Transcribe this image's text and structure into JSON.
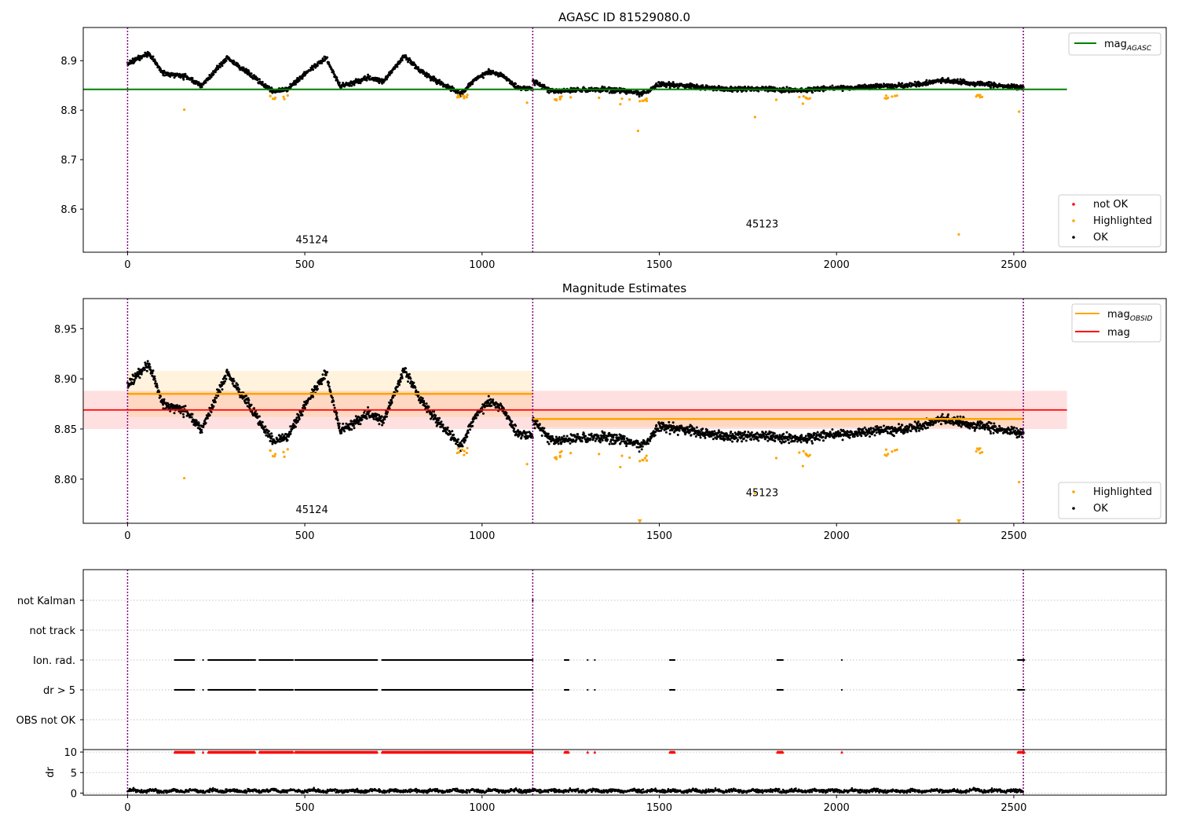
{
  "colors": {
    "ok": "#000000",
    "highlighted": "#FFA500",
    "not_ok": "#FF0000",
    "mag_agasc": "#008000",
    "mag_obsid": "#FFA500",
    "mag": "#FF0000",
    "obsid_divider": "#800080",
    "grid": "#B0B0B0"
  },
  "panel1": {
    "title": "AGASC ID 81529080.0",
    "legend_lines": [
      {
        "base": "mag",
        "sub": "AGASC"
      }
    ],
    "legend_points": [
      "not OK",
      "Highlighted",
      "OK"
    ],
    "obsid_labels": [
      {
        "text": "45124",
        "x": 520,
        "y": 8.531
      },
      {
        "text": "45123",
        "x": 1790,
        "y": 8.563
      }
    ]
  },
  "panel2": {
    "title": "Magnitude Estimates",
    "legend_lines": [
      {
        "base": "mag",
        "sub": "OBSID"
      },
      {
        "base": "mag",
        "sub": ""
      }
    ],
    "legend_points": [
      "Highlighted",
      "OK"
    ],
    "obsid_labels": [
      {
        "text": "45124",
        "x": 520,
        "y": 8.766
      },
      {
        "text": "45123",
        "x": 1790,
        "y": 8.783
      }
    ]
  },
  "panel3": {
    "flag_labels": [
      "not Kalman",
      "not track",
      "Ion. rad.",
      "dr > 5",
      "OBS not OK"
    ]
  },
  "panel4": {
    "ylabel": "dr"
  },
  "chart_data": [
    {
      "type": "scatter",
      "title": "AGASC ID 81529080.0",
      "xlim": [
        -125,
        2930
      ],
      "ylim": [
        8.513,
        8.967
      ],
      "xticks": [
        0,
        500,
        1000,
        1500,
        2000,
        2500
      ],
      "yticks": [
        8.6,
        8.7,
        8.8,
        8.9
      ],
      "mag_agasc": 8.842,
      "obsid_boundaries": [
        0,
        1143,
        2527
      ],
      "obsids": [
        "45124",
        "45123"
      ],
      "series": [
        {
          "name": "OK",
          "segments": [
            {
              "x": [
                0,
                60,
                100,
                160,
                210,
                280,
                350,
                410,
                450,
                520,
                560,
                600,
                680,
                720,
                780,
                840,
                900,
                940,
                980,
                1020,
                1060,
                1100,
                1143
              ],
              "y": [
                8.893,
                8.915,
                8.875,
                8.868,
                8.85,
                8.905,
                8.87,
                8.838,
                8.842,
                8.885,
                8.905,
                8.848,
                8.865,
                8.858,
                8.908,
                8.872,
                8.848,
                8.833,
                8.862,
                8.878,
                8.87,
                8.845,
                8.843
              ]
            },
            {
              "x": [
                1143,
                1200,
                1300,
                1400,
                1450,
                1500,
                1600,
                1700,
                1800,
                1900,
                2000,
                2100,
                2200,
                2300,
                2400,
                2500,
                2527
              ],
              "y": [
                8.858,
                8.838,
                8.842,
                8.84,
                8.832,
                8.852,
                8.848,
                8.842,
                8.843,
                8.84,
                8.845,
                8.848,
                8.85,
                8.86,
                8.853,
                8.848,
                8.845
              ]
            }
          ]
        },
        {
          "name": "Highlighted",
          "x": [
            160,
            410,
            440,
            930,
            950,
            1127,
            1210,
            1250,
            1330,
            1390,
            1440,
            1445,
            1460,
            1770,
            1830,
            1905,
            1925,
            2145,
            2345,
            2405,
            2515
          ],
          "y": [
            8.801,
            8.823,
            8.827,
            8.826,
            8.828,
            8.815,
            8.82,
            8.826,
            8.825,
            8.812,
            8.758,
            8.818,
            8.821,
            8.786,
            8.821,
            8.813,
            8.824,
            8.825,
            8.549,
            8.826,
            8.797
          ]
        },
        {
          "name": "not OK",
          "x": [],
          "y": []
        }
      ]
    },
    {
      "type": "scatter",
      "title": "Magnitude Estimates",
      "xlim": [
        -125,
        2930
      ],
      "ylim": [
        8.756,
        8.98
      ],
      "xticks": [
        0,
        500,
        1000,
        1500,
        2000,
        2500
      ],
      "yticks": [
        8.8,
        8.85,
        8.9,
        8.95
      ],
      "ytick_labels": [
        "8.80",
        "8.85",
        "8.90",
        "8.95"
      ],
      "mag": 8.869,
      "mag_band": [
        8.85,
        8.888
      ],
      "mag_obsid": [
        {
          "x": [
            0,
            1143
          ],
          "value": 8.885,
          "band": [
            8.862,
            8.908
          ]
        },
        {
          "x": [
            1143,
            2527
          ],
          "value": 8.86,
          "band": [
            8.852,
            8.868
          ]
        }
      ],
      "obsid_boundaries": [
        0,
        1143,
        2527
      ],
      "series": [
        {
          "name": "OK",
          "segments": [
            {
              "x": [
                0,
                60,
                100,
                160,
                210,
                280,
                350,
                410,
                450,
                520,
                560,
                600,
                680,
                720,
                780,
                840,
                900,
                940,
                980,
                1020,
                1060,
                1100,
                1143
              ],
              "y": [
                8.893,
                8.915,
                8.875,
                8.868,
                8.85,
                8.905,
                8.87,
                8.838,
                8.842,
                8.885,
                8.905,
                8.848,
                8.865,
                8.858,
                8.908,
                8.872,
                8.848,
                8.833,
                8.862,
                8.878,
                8.87,
                8.845,
                8.843
              ]
            },
            {
              "x": [
                1143,
                1200,
                1300,
                1400,
                1450,
                1500,
                1600,
                1700,
                1800,
                1900,
                2000,
                2100,
                2200,
                2300,
                2400,
                2500,
                2527
              ],
              "y": [
                8.858,
                8.838,
                8.842,
                8.84,
                8.832,
                8.852,
                8.848,
                8.842,
                8.843,
                8.84,
                8.845,
                8.848,
                8.85,
                8.86,
                8.853,
                8.848,
                8.845
              ]
            }
          ]
        },
        {
          "name": "Highlighted",
          "x": [
            160,
            410,
            440,
            930,
            950,
            1127,
            1210,
            1250,
            1330,
            1390,
            1445,
            1460,
            1770,
            1830,
            1905,
            1925,
            2145,
            2405,
            2515
          ],
          "y": [
            8.801,
            8.823,
            8.827,
            8.826,
            8.828,
            8.815,
            8.82,
            8.826,
            8.825,
            8.812,
            8.818,
            8.821,
            8.786,
            8.821,
            8.813,
            8.824,
            8.825,
            8.826,
            8.797
          ]
        },
        {
          "name": "Highlighted (clipped below axis)",
          "x": [
            1445,
            2345
          ],
          "y": [
            8.756,
            8.756
          ]
        }
      ]
    },
    {
      "type": "scatter",
      "xlim": [
        -125,
        2930
      ],
      "categories": [
        "not Kalman",
        "not track",
        "Ion. rad.",
        "dr > 5",
        "OBS not OK"
      ],
      "obsid_boundaries": [
        0,
        1143,
        2527
      ],
      "flag_ranges": {
        "Ion. rad.": [
          [
            133,
            190
          ],
          [
            213,
            215
          ],
          [
            228,
            360
          ],
          [
            372,
            467
          ],
          [
            473,
            705
          ],
          [
            718,
            1143
          ],
          [
            1233,
            1245
          ],
          [
            1298,
            1300
          ],
          [
            1318,
            1320
          ],
          [
            1530,
            1545
          ],
          [
            1833,
            1850
          ],
          [
            2015,
            2017
          ],
          [
            2512,
            2530
          ]
        ],
        "dr > 5": [
          [
            133,
            190
          ],
          [
            213,
            215
          ],
          [
            228,
            360
          ],
          [
            372,
            467
          ],
          [
            473,
            705
          ],
          [
            718,
            1143
          ],
          [
            1233,
            1245
          ],
          [
            1298,
            1300
          ],
          [
            1318,
            1320
          ],
          [
            1530,
            1545
          ],
          [
            1833,
            1850
          ],
          [
            2015,
            2017
          ],
          [
            2512,
            2530
          ]
        ],
        "not Kalman": [
          [
            1143,
            1145
          ]
        ]
      }
    },
    {
      "type": "scatter",
      "ylabel": "dr",
      "xlim": [
        -125,
        2930
      ],
      "ylim": [
        -0.5,
        10.6
      ],
      "xticks": [
        0,
        500,
        1000,
        1500,
        2000,
        2500
      ],
      "yticks": [
        0,
        5,
        10
      ],
      "series": [
        {
          "name": "dr",
          "x": [
            0,
            2527
          ],
          "y": [
            0.6,
            0.6
          ]
        },
        {
          "name": "dr > 10 (clipped)",
          "same_ranges_as": "dr > 5",
          "y": 10
        }
      ]
    }
  ]
}
